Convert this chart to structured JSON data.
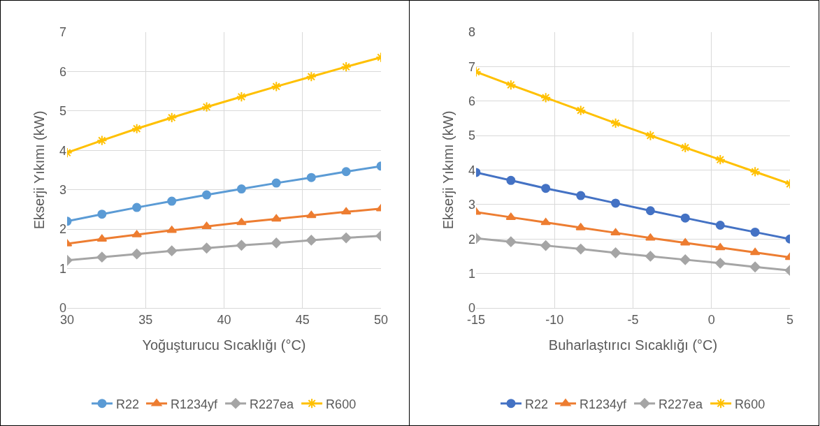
{
  "chart_data": [
    {
      "type": "line",
      "xlabel": "Yoğuşturucu Sıcaklığı (°C)",
      "ylabel": "Ekserji Yıkımı (kW)",
      "x": [
        30,
        32.22,
        34.44,
        36.67,
        38.89,
        41.11,
        43.33,
        45.56,
        47.78,
        50
      ],
      "xlim": [
        30,
        50
      ],
      "xticks": [
        30,
        35,
        40,
        45,
        50
      ],
      "ylim": [
        0,
        7
      ],
      "yticks": [
        0,
        1,
        2,
        3,
        4,
        5,
        6,
        7
      ],
      "grid": true,
      "legend": "bottom",
      "series": [
        {
          "name": "R22",
          "color": "#5b9bd5",
          "marker": "circle",
          "values": [
            2.2,
            2.38,
            2.55,
            2.71,
            2.87,
            3.02,
            3.17,
            3.31,
            3.46,
            3.6
          ]
        },
        {
          "name": "R1234yf",
          "color": "#ed7d31",
          "marker": "triangle",
          "values": [
            1.63,
            1.75,
            1.86,
            1.97,
            2.07,
            2.17,
            2.26,
            2.35,
            2.44,
            2.52
          ]
        },
        {
          "name": "R227ea",
          "color": "#a5a5a5",
          "marker": "diamond",
          "values": [
            1.21,
            1.29,
            1.37,
            1.45,
            1.52,
            1.59,
            1.65,
            1.72,
            1.78,
            1.83
          ]
        },
        {
          "name": "R600",
          "color": "#ffc000",
          "marker": "cross",
          "values": [
            3.94,
            4.25,
            4.55,
            4.83,
            5.1,
            5.36,
            5.62,
            5.87,
            6.12,
            6.36
          ]
        }
      ]
    },
    {
      "type": "line",
      "xlabel": "Buharlaştırıcı Sıcaklığı (°C)",
      "ylabel": "Ekserji Yıkımı (kW)",
      "x": [
        -15,
        -12.78,
        -10.56,
        -8.33,
        -6.11,
        -3.89,
        -1.67,
        0.56,
        2.78,
        5
      ],
      "xlim": [
        -15,
        5
      ],
      "xticks": [
        -15,
        -10,
        -5,
        0,
        5
      ],
      "ylim": [
        0,
        8
      ],
      "yticks": [
        0,
        1,
        2,
        3,
        4,
        5,
        6,
        7,
        8
      ],
      "grid": true,
      "legend": "bottom",
      "series": [
        {
          "name": "R22",
          "color": "#4472c4",
          "marker": "circle",
          "values": [
            3.93,
            3.7,
            3.47,
            3.26,
            3.04,
            2.82,
            2.61,
            2.4,
            2.2,
            2.0
          ]
        },
        {
          "name": "R1234yf",
          "color": "#ed7d31",
          "marker": "triangle",
          "values": [
            2.78,
            2.63,
            2.48,
            2.33,
            2.18,
            2.03,
            1.89,
            1.75,
            1.61,
            1.47
          ]
        },
        {
          "name": "R227ea",
          "color": "#a5a5a5",
          "marker": "diamond",
          "values": [
            2.02,
            1.92,
            1.81,
            1.71,
            1.6,
            1.5,
            1.4,
            1.3,
            1.19,
            1.09
          ]
        },
        {
          "name": "R600",
          "color": "#ffc000",
          "marker": "cross",
          "values": [
            6.85,
            6.47,
            6.1,
            5.73,
            5.36,
            5.0,
            4.65,
            4.3,
            3.95,
            3.6
          ]
        }
      ]
    }
  ]
}
